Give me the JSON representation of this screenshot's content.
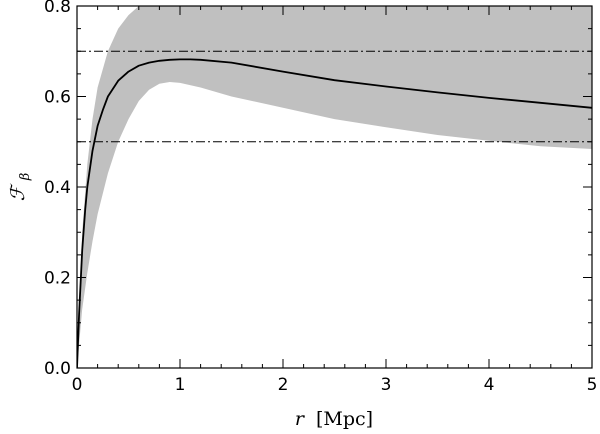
{
  "chart_data": {
    "type": "line",
    "title": "",
    "xlabel": {
      "symbol": "r",
      "unit": "[Mpc]"
    },
    "ylabel": {
      "symbol": "ℱ",
      "subscript": "β"
    },
    "xlim": [
      0,
      5
    ],
    "ylim": [
      0,
      0.8
    ],
    "x_ticks": [
      0,
      1,
      2,
      3,
      4,
      5
    ],
    "x_tick_labels": [
      "0",
      "1",
      "2",
      "3",
      "4",
      "5"
    ],
    "y_ticks": [
      0.0,
      0.2,
      0.4,
      0.6,
      0.8
    ],
    "y_tick_labels": [
      "0.0",
      "0.2",
      "0.4",
      "0.6",
      "0.8"
    ],
    "grid": false,
    "reference_lines": [
      {
        "y": 0.7,
        "style": "dash-dot"
      },
      {
        "y": 0.5,
        "style": "dash-dot"
      }
    ],
    "band": {
      "x": [
        0.0,
        0.05,
        0.1,
        0.15,
        0.2,
        0.3,
        0.4,
        0.5,
        0.6,
        0.7,
        0.8,
        0.9,
        1.0,
        1.2,
        1.5,
        2.0,
        2.5,
        3.0,
        3.5,
        4.0,
        4.5,
        5.0
      ],
      "lower": [
        0.0,
        0.13,
        0.21,
        0.28,
        0.34,
        0.43,
        0.5,
        0.55,
        0.59,
        0.615,
        0.628,
        0.632,
        0.63,
        0.62,
        0.6,
        0.575,
        0.55,
        0.532,
        0.515,
        0.502,
        0.49,
        0.484
      ],
      "upper": [
        0.0,
        0.3,
        0.45,
        0.55,
        0.62,
        0.7,
        0.75,
        0.78,
        0.8,
        0.82,
        0.84,
        0.85,
        0.86,
        0.86,
        0.86,
        0.86,
        0.86,
        0.86,
        0.86,
        0.86,
        0.86,
        0.86
      ]
    },
    "series": [
      {
        "x": [
          0.0,
          0.02,
          0.05,
          0.08,
          0.1,
          0.15,
          0.2,
          0.25,
          0.3,
          0.4,
          0.5,
          0.6,
          0.7,
          0.8,
          0.9,
          1.0,
          1.1,
          1.2,
          1.5,
          2.0,
          2.5,
          3.0,
          3.5,
          4.0,
          4.5,
          5.0
        ],
        "y": [
          0.0,
          0.12,
          0.26,
          0.35,
          0.4,
          0.48,
          0.535,
          0.57,
          0.6,
          0.635,
          0.655,
          0.668,
          0.675,
          0.679,
          0.681,
          0.682,
          0.682,
          0.681,
          0.675,
          0.655,
          0.636,
          0.622,
          0.609,
          0.597,
          0.586,
          0.575
        ]
      }
    ],
    "colors": {
      "band": "#c0c0c0",
      "line": "#000000",
      "axes": "#000000"
    }
  }
}
